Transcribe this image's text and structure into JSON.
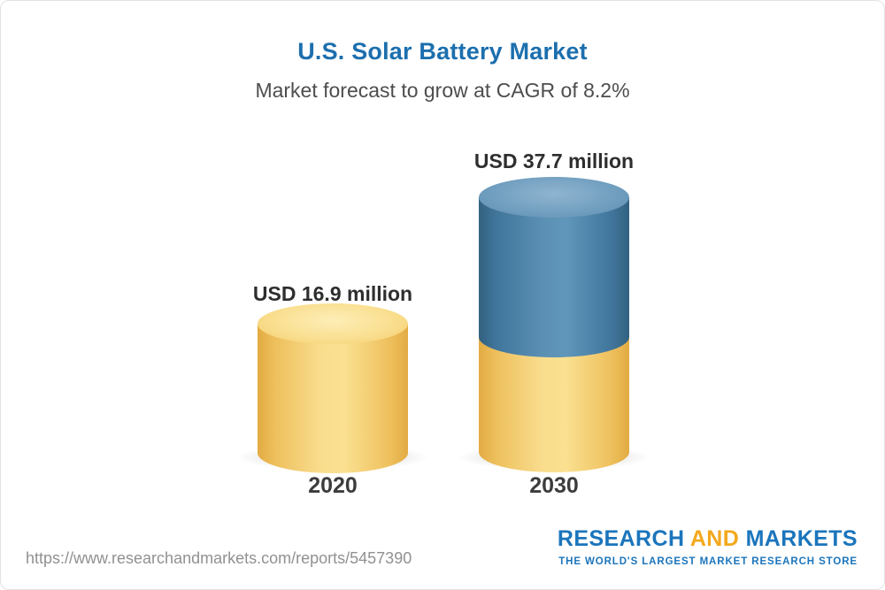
{
  "header": {
    "title": "U.S. Solar Battery Market",
    "subtitle": "Market forecast to grow at CAGR of 8.2%"
  },
  "chart_data": {
    "type": "bar",
    "variant": "3d-cylinder-column",
    "title": "U.S. Solar Battery Market",
    "subtitle": "Market forecast to grow at CAGR of 8.2%",
    "cagr_percent": 8.2,
    "unit": "USD million",
    "categories": [
      "2020",
      "2030"
    ],
    "values": [
      16.9,
      37.7
    ],
    "value_labels": [
      "USD 16.9 million",
      "USD 37.7 million"
    ],
    "series": [
      {
        "name": "gold-base-segment",
        "color": "#F5CE6E",
        "values": [
          16.9,
          16.9
        ]
      },
      {
        "name": "blue-growth-segment",
        "color": "#4E86AD",
        "values": [
          0,
          20.8
        ]
      }
    ],
    "legend": "none",
    "axes": "none (value labels above columns, year labels below)"
  },
  "footer": {
    "report_url": "https://www.researchandmarkets.com/reports/5457390",
    "logo": {
      "word_research": "RESEARCH",
      "word_and": "AND",
      "word_markets": "MARKETS",
      "tagline": "THE WORLD'S LARGEST MARKET RESEARCH STORE"
    }
  },
  "colors": {
    "title_blue": "#1C6FAE",
    "gold": "#F5CE6E",
    "steel_blue": "#4E86AD",
    "logo_blue": "#1B75BC",
    "logo_gold": "#F3A81C"
  }
}
